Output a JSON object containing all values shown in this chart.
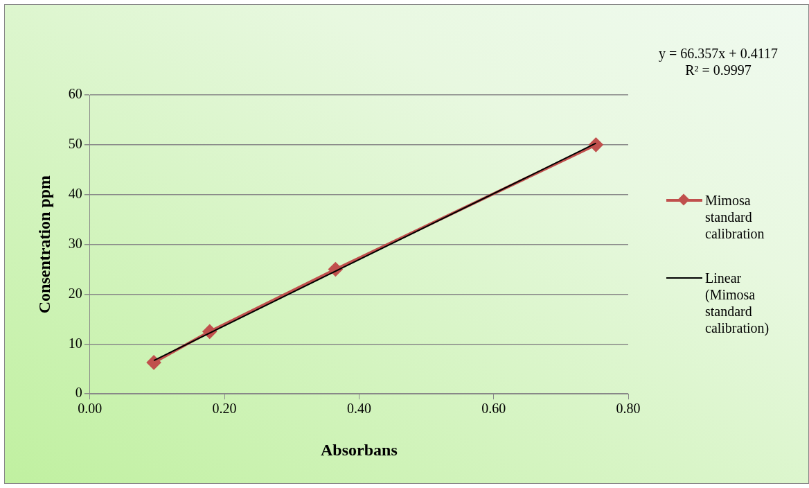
{
  "chart_data": {
    "type": "line",
    "xlabel": "Absorbans",
    "ylabel": "Consentration ppm",
    "xlim": [
      0,
      0.8
    ],
    "xticks": [
      {
        "value": 0,
        "label": "0.00"
      },
      {
        "value": 0.2,
        "label": "0.20"
      },
      {
        "value": 0.4,
        "label": "0.40"
      },
      {
        "value": 0.6,
        "label": "0.60"
      },
      {
        "value": 0.8,
        "label": "0.80"
      }
    ],
    "ylim": [
      0,
      60
    ],
    "yticks": [
      0,
      10,
      20,
      30,
      40,
      50,
      60
    ],
    "grid": "y",
    "legend": "right",
    "series": [
      {
        "name": "Mimosa standard calibration",
        "color": "#c0504d",
        "marker": "diamond",
        "x": [
          0.095,
          0.178,
          0.365,
          0.752
        ],
        "values": [
          6.3,
          12.5,
          25,
          50
        ]
      },
      {
        "name": "Linear (Mimosa standard calibration)",
        "color": "#000000",
        "marker": "none",
        "x": [
          0.095,
          0.752
        ],
        "values": [
          6.7,
          50.3
        ]
      }
    ],
    "annotations": [
      "y = 66.357x + 0.4117",
      "R² = 0.9997"
    ]
  }
}
